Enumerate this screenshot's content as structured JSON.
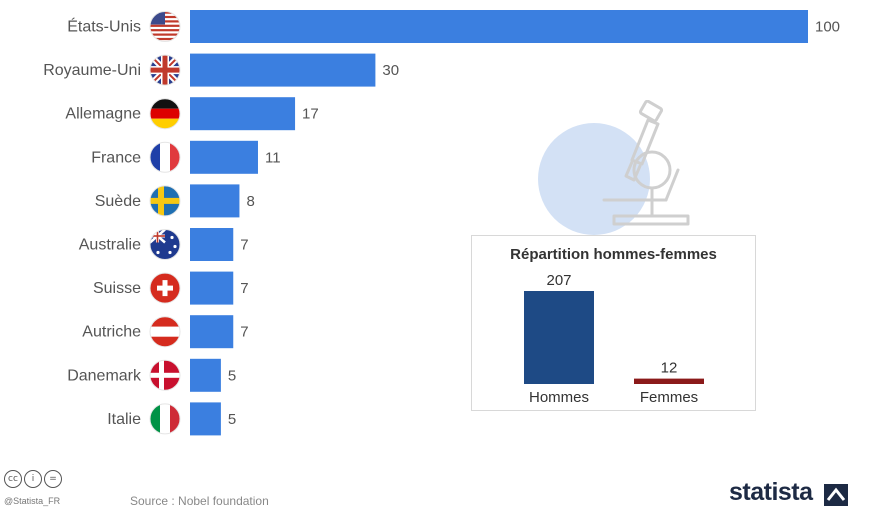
{
  "chart_data": {
    "type": "bar",
    "orientation": "horizontal",
    "categories": [
      "États-Unis",
      "Royaume-Uni",
      "Allemagne",
      "France",
      "Suède",
      "Australie",
      "Suisse",
      "Autriche",
      "Danemark",
      "Italie"
    ],
    "values": [
      100,
      30,
      17,
      11,
      8,
      7,
      7,
      7,
      5,
      5
    ],
    "flags": [
      "us-flag-icon",
      "uk-flag-icon",
      "germany-flag-icon",
      "france-flag-icon",
      "sweden-flag-icon",
      "australia-flag-icon",
      "switzerland-flag-icon",
      "austria-flag-icon",
      "denmark-flag-icon",
      "italy-flag-icon"
    ],
    "bar_color": "#3b7fe0",
    "xlim": [
      0,
      100
    ],
    "grid": false,
    "inset": {
      "type": "bar",
      "title": "Répartition hommes-femmes",
      "categories": [
        "Hommes",
        "Femmes"
      ],
      "values": [
        207,
        12
      ],
      "colors": [
        "#1e4a85",
        "#8b1a1a"
      ],
      "ylim": [
        0,
        207
      ]
    }
  },
  "footer": {
    "license_icons": [
      "cc",
      "i",
      "="
    ],
    "handle": "@Statista_FR",
    "source": "Source : Nobel foundation",
    "brand": "statista"
  }
}
